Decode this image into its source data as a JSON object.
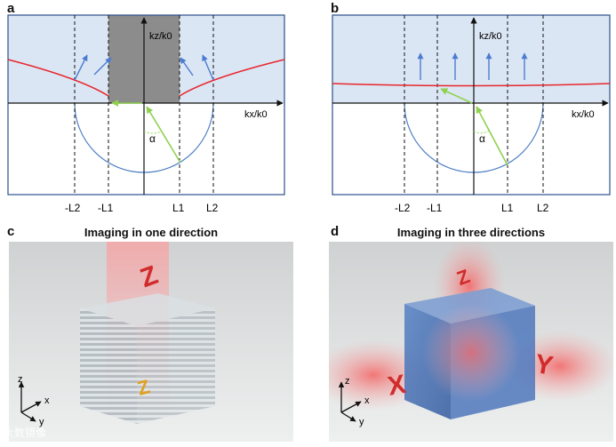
{
  "panels": {
    "a": {
      "label": "a",
      "axis_y": "kz/k0",
      "axis_x": "kx/k0",
      "angle": "α",
      "ticks": [
        "-L2",
        "-L1",
        "L1",
        "L2"
      ]
    },
    "b": {
      "label": "b",
      "axis_y": "kz/k0",
      "axis_x": "kx/k0",
      "angle": "α",
      "ticks": [
        "-L2",
        "-L1",
        "L1",
        "L2"
      ]
    },
    "c": {
      "label": "c",
      "title": "Imaging in one direction",
      "axes": {
        "z": "z",
        "x": "x",
        "y": "y"
      },
      "mark": "Z"
    },
    "d": {
      "label": "d",
      "title": "Imaging in three directions",
      "axes": {
        "z": "z",
        "x": "x",
        "y": "y"
      },
      "marks": [
        "Z",
        "X",
        "Y"
      ]
    }
  },
  "colors": {
    "band": "#dbe6f5",
    "gray_block": "#8c8c8c",
    "curve": "#e8262b",
    "circle": "#4f7fc4",
    "arrow": "#4a7bd0",
    "k_vector": "#8fd14f"
  },
  "watermark": "大数镜像"
}
